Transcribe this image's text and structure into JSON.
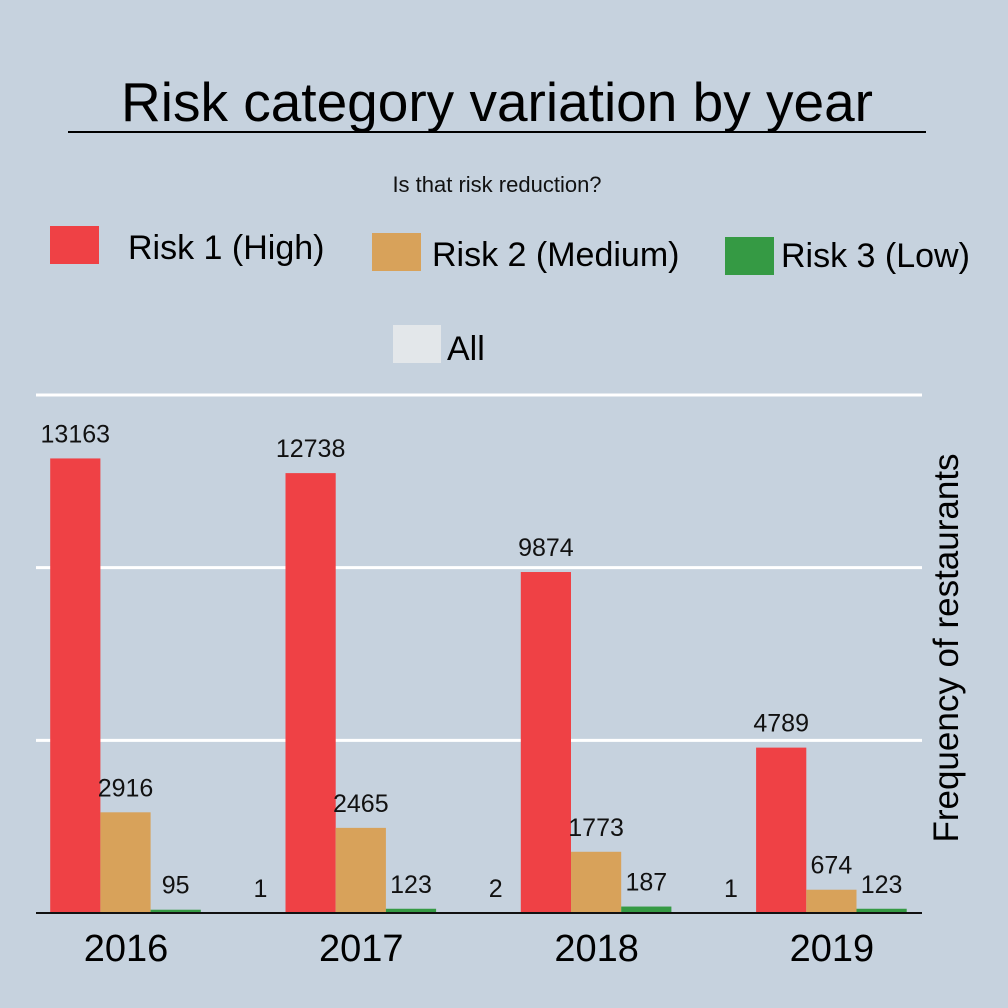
{
  "title": "Risk category variation by year",
  "subtitle": "Is that risk reduction?",
  "colors": {
    "background": "#c6d2de",
    "risk1": "#ef4145",
    "risk2": "#d8a25a",
    "risk3": "#359a44",
    "all": "#e3e7ea",
    "grid": "#ffffff"
  },
  "legend": [
    {
      "label": "Risk 1 (High)"
    },
    {
      "label": "Risk 2 (Medium)"
    },
    {
      "label": "Risk 3 (Low)"
    },
    {
      "label": "All"
    }
  ],
  "chart_data": {
    "type": "bar",
    "title": "Risk category variation by year",
    "subtitle": "Is that risk reduction?",
    "ylabel": "Frequency of restaurants",
    "xlabel": "",
    "categories": [
      "2016",
      "2017",
      "2018",
      "2019"
    ],
    "series": [
      {
        "name": "All",
        "values": [
          0,
          1,
          2,
          1
        ],
        "labels": [
          "",
          "1",
          "2",
          "1"
        ]
      },
      {
        "name": "Risk 1 (High)",
        "values": [
          13163,
          12738,
          9874,
          4789
        ],
        "labels": [
          "13163",
          "12738",
          "9874",
          "4789"
        ]
      },
      {
        "name": "Risk 2 (Medium)",
        "values": [
          2916,
          2465,
          1773,
          674
        ],
        "labels": [
          "2916",
          "2465",
          "1773",
          "674"
        ]
      },
      {
        "name": "Risk 3 (Low)",
        "values": [
          95,
          123,
          187,
          123
        ],
        "labels": [
          "95",
          "123",
          "187",
          "123"
        ]
      }
    ],
    "ylim": [
      0,
      15000
    ],
    "y_gridlines": [
      5000,
      10000,
      15000
    ],
    "y_axis_position": "right",
    "y_tick_labels_shown": false,
    "legend_placement": "top"
  }
}
